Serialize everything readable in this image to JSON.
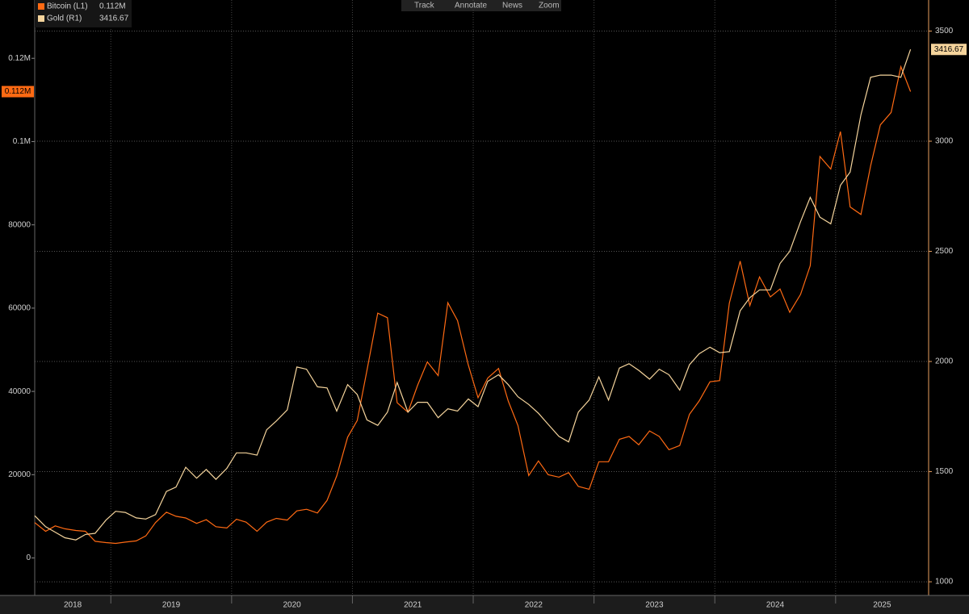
{
  "toolbar": [
    "Track",
    "Annotate",
    "News",
    "Zoom"
  ],
  "chart_data": {
    "type": "line",
    "x": [
      2018.37,
      2018.46,
      2018.54,
      2018.62,
      2018.71,
      2018.79,
      2018.87,
      2018.96,
      2019.04,
      2019.12,
      2019.21,
      2019.29,
      2019.37,
      2019.46,
      2019.54,
      2019.62,
      2019.71,
      2019.79,
      2019.87,
      2019.96,
      2020.04,
      2020.12,
      2020.21,
      2020.29,
      2020.37,
      2020.46,
      2020.54,
      2020.62,
      2020.71,
      2020.79,
      2020.87,
      2020.96,
      2021.04,
      2021.12,
      2021.21,
      2021.29,
      2021.37,
      2021.46,
      2021.54,
      2021.62,
      2021.71,
      2021.79,
      2021.87,
      2021.96,
      2022.04,
      2022.12,
      2022.21,
      2022.29,
      2022.37,
      2022.46,
      2022.54,
      2022.62,
      2022.71,
      2022.79,
      2022.87,
      2022.96,
      2023.04,
      2023.12,
      2023.21,
      2023.29,
      2023.37,
      2023.46,
      2023.54,
      2023.62,
      2023.71,
      2023.79,
      2023.87,
      2023.96,
      2024.04,
      2024.12,
      2024.21,
      2024.29,
      2024.37,
      2024.46,
      2024.54,
      2024.62,
      2024.71,
      2024.79,
      2024.87,
      2024.96,
      2025.04,
      2025.12,
      2025.21,
      2025.29,
      2025.37,
      2025.46,
      2025.54,
      2025.62
    ],
    "series": [
      {
        "name": "Bitcoin (L1)",
        "color": "#ff6a13",
        "axis": "y",
        "last_label": "0.112M",
        "values": [
          8500,
          6400,
          7700,
          7000,
          6600,
          6400,
          4000,
          3700,
          3500,
          3800,
          4100,
          5300,
          8500,
          11000,
          10000,
          9600,
          8300,
          9200,
          7500,
          7200,
          9300,
          8600,
          6400,
          8600,
          9500,
          9100,
          11300,
          11700,
          10800,
          13800,
          19700,
          29000,
          33000,
          45000,
          58800,
          57700,
          37300,
          35000,
          41500,
          47100,
          43800,
          61300,
          57000,
          46300,
          38500,
          43200,
          45500,
          37700,
          31800,
          19800,
          23300,
          20000,
          19400,
          20500,
          17200,
          16500,
          23100,
          23100,
          28500,
          29200,
          27200,
          30500,
          29200,
          26000,
          27000,
          34500,
          37700,
          42300,
          42600,
          61200,
          71300,
          60600,
          67500,
          62700,
          64600,
          59000,
          63300,
          70200,
          96400,
          93400,
          102400,
          84300,
          82500,
          94200,
          104000,
          107000,
          118000,
          112000
        ]
      },
      {
        "name": "Gold (R1)",
        "color": "#f5d49c",
        "axis": "y2",
        "values": [
          1300,
          1250,
          1225,
          1200,
          1190,
          1215,
          1220,
          1280,
          1320,
          1315,
          1290,
          1285,
          1305,
          1410,
          1430,
          1520,
          1470,
          1510,
          1465,
          1515,
          1585,
          1585,
          1575,
          1690,
          1730,
          1780,
          1975,
          1965,
          1885,
          1880,
          1775,
          1895,
          1850,
          1735,
          1710,
          1770,
          1905,
          1770,
          1815,
          1815,
          1745,
          1785,
          1775,
          1830,
          1795,
          1910,
          1940,
          1895,
          1840,
          1805,
          1765,
          1715,
          1660,
          1635,
          1770,
          1825,
          1930,
          1825,
          1970,
          1990,
          1960,
          1920,
          1965,
          1940,
          1870,
          1985,
          2035,
          2065,
          2040,
          2045,
          2230,
          2290,
          2325,
          2325,
          2445,
          2500,
          2635,
          2745,
          2655,
          2625,
          2800,
          2860,
          3120,
          3290,
          3300,
          3300,
          3290,
          3416.67
        ]
      }
    ],
    "xlim": [
      2018.37,
      2025.77
    ],
    "xticks": [
      2018,
      2019,
      2020,
      2021,
      2022,
      2023,
      2024,
      2025
    ],
    "ylim": [
      -9000,
      134000
    ],
    "yticks": [
      0,
      20000,
      40000,
      60000,
      80000,
      {
        "value": 100000,
        "label": "0.1M"
      },
      {
        "value": 120000,
        "label": "0.12M"
      }
    ],
    "y2lim": [
      938,
      3641
    ],
    "y2ticks": [
      1000,
      1500,
      2000,
      2500,
      3000,
      3500
    ],
    "grid": true,
    "legend": "top-left"
  }
}
